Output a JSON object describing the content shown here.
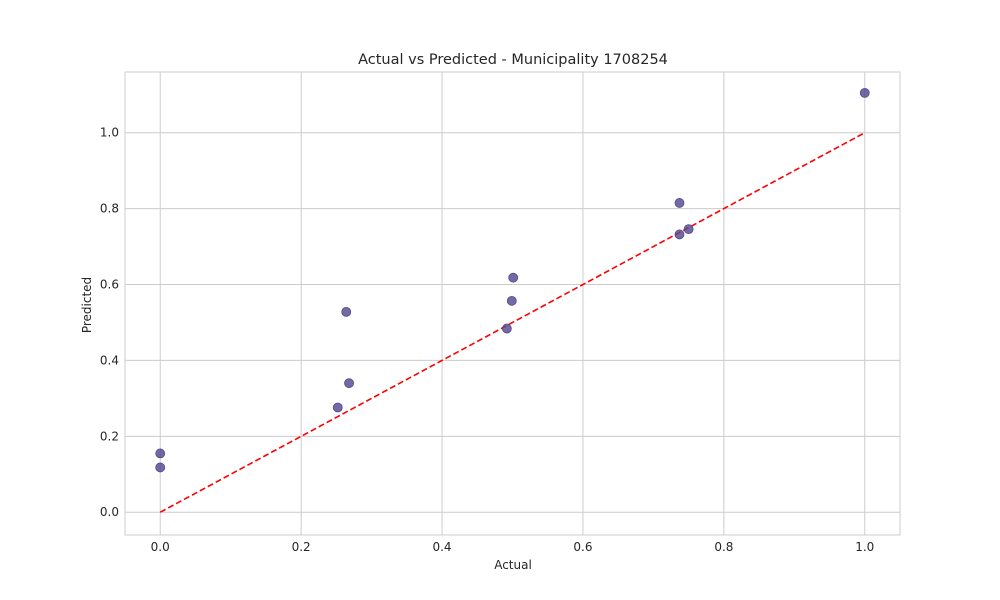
{
  "chart_data": {
    "type": "scatter",
    "title": "Actual vs Predicted - Municipality 1708254",
    "xlabel": "Actual",
    "ylabel": "Predicted",
    "xlim": [
      -0.05,
      1.05
    ],
    "ylim": [
      -0.06,
      1.16
    ],
    "xticks": [
      "0.0",
      "0.2",
      "0.4",
      "0.6",
      "0.8",
      "1.0"
    ],
    "yticks": [
      "0.0",
      "0.2",
      "0.4",
      "0.6",
      "0.8",
      "1.0"
    ],
    "grid": true,
    "points": [
      {
        "x": 0.0,
        "y": 0.155
      },
      {
        "x": 0.0,
        "y": 0.118
      },
      {
        "x": 0.252,
        "y": 0.276
      },
      {
        "x": 0.268,
        "y": 0.34
      },
      {
        "x": 0.264,
        "y": 0.528
      },
      {
        "x": 0.492,
        "y": 0.484
      },
      {
        "x": 0.499,
        "y": 0.557
      },
      {
        "x": 0.501,
        "y": 0.618
      },
      {
        "x": 0.737,
        "y": 0.815
      },
      {
        "x": 0.737,
        "y": 0.732
      },
      {
        "x": 0.75,
        "y": 0.746
      },
      {
        "x": 1.0,
        "y": 1.105
      }
    ],
    "reference_line": {
      "x": [
        0.0,
        1.0
      ],
      "y": [
        0.0,
        1.0
      ]
    },
    "colors": {
      "point": "#56488e",
      "reference_line": "#ff0000",
      "grid": "#cccccc",
      "frame": "#cccccc",
      "text": "#262626"
    }
  }
}
